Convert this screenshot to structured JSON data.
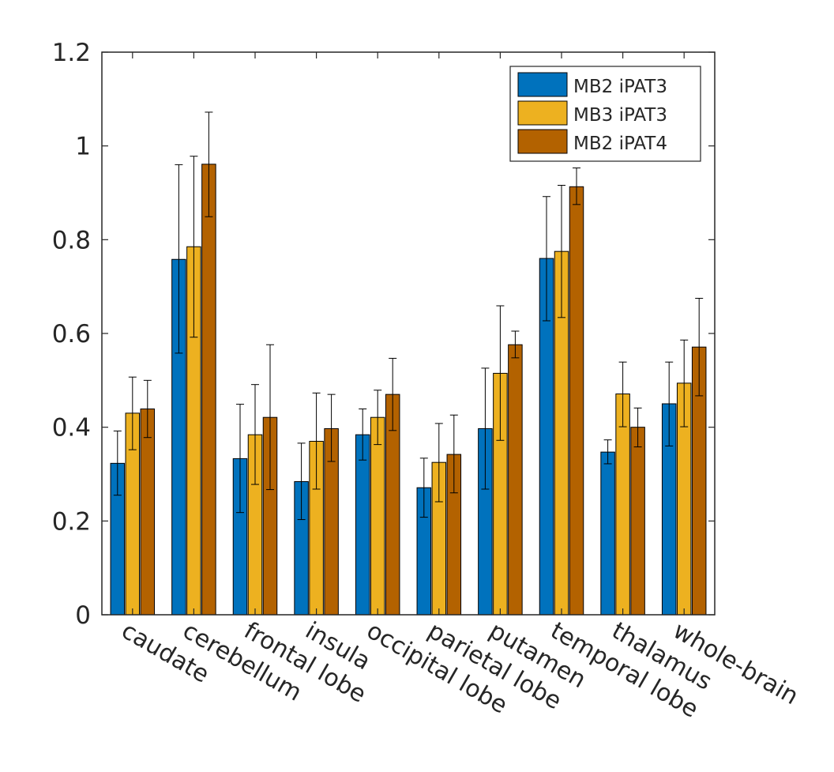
{
  "chart_data": {
    "type": "bar",
    "title": "",
    "xlabel": "",
    "ylabel": "",
    "ylim": [
      0,
      1.2
    ],
    "yticks": [
      "0",
      "0.2",
      "0.4",
      "0.6",
      "0.8",
      "1",
      "1.2"
    ],
    "categories": [
      "caudate",
      "cerebellum",
      "frontal lobe",
      "insula",
      "occipital lobe",
      "parietal lobe",
      "putamen",
      "temporal lobe",
      "thalamus",
      "whole-brain"
    ],
    "series": [
      {
        "name": "MB2 iPAT3",
        "color": "#0072bd",
        "values": [
          0.323,
          0.758,
          0.333,
          0.284,
          0.384,
          0.271,
          0.397,
          0.76,
          0.347,
          0.45
        ],
        "err_low": [
          0.255,
          0.558,
          0.218,
          0.203,
          0.33,
          0.208,
          0.268,
          0.627,
          0.322,
          0.36
        ],
        "err_high": [
          0.392,
          0.96,
          0.449,
          0.366,
          0.439,
          0.334,
          0.526,
          0.892,
          0.373,
          0.539
        ]
      },
      {
        "name": "MB3 iPAT3",
        "color": "#edb120",
        "values": [
          0.43,
          0.785,
          0.384,
          0.37,
          0.421,
          0.325,
          0.515,
          0.775,
          0.471,
          0.494
        ],
        "err_low": [
          0.352,
          0.592,
          0.278,
          0.268,
          0.363,
          0.241,
          0.372,
          0.634,
          0.401,
          0.401
        ],
        "err_high": [
          0.507,
          0.978,
          0.491,
          0.473,
          0.479,
          0.408,
          0.659,
          0.916,
          0.539,
          0.586
        ]
      },
      {
        "name": "MB2 iPAT4",
        "color": "#b36200",
        "values": [
          0.439,
          0.961,
          0.421,
          0.397,
          0.47,
          0.342,
          0.576,
          0.913,
          0.4,
          0.571
        ],
        "err_low": [
          0.378,
          0.849,
          0.267,
          0.327,
          0.393,
          0.26,
          0.548,
          0.875,
          0.358,
          0.467
        ],
        "err_high": [
          0.5,
          1.072,
          0.576,
          0.47,
          0.547,
          0.426,
          0.605,
          0.953,
          0.441,
          0.675
        ]
      }
    ],
    "legend_position": "top-right",
    "grid": false
  }
}
